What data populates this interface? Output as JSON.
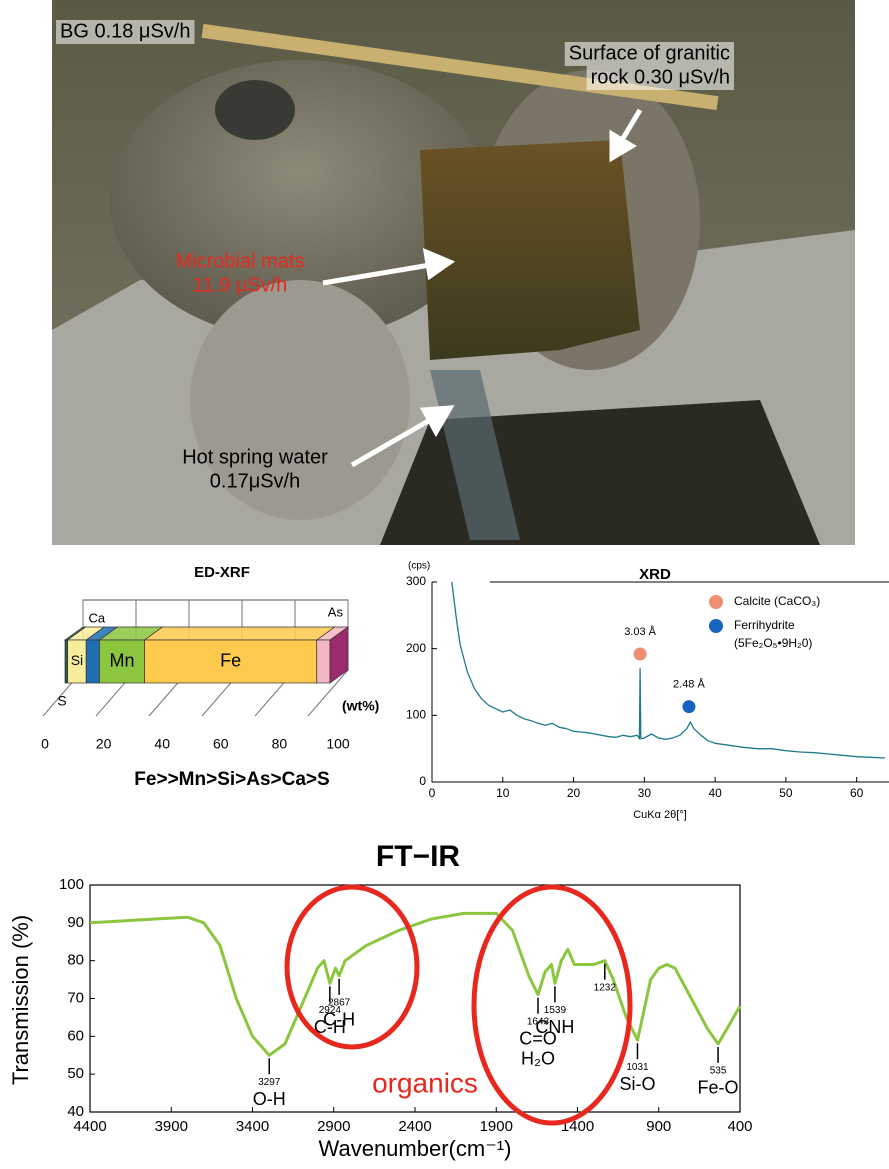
{
  "photo": {
    "labels": [
      {
        "lines": [
          "BG  0.18 μSv/h"
        ],
        "color": "#000000"
      },
      {
        "lines": [
          "Surface of granitic",
          "rock 0.30 μSv/h"
        ],
        "color": "#000000"
      },
      {
        "lines": [
          "Microbial mats",
          "11.9 μSv/h"
        ],
        "color": "#e8281e"
      },
      {
        "lines": [
          "Hot spring water",
          "0.17μSv/h"
        ],
        "color": "#000000"
      }
    ]
  },
  "chart_data": [
    {
      "type": "stacked-bar",
      "title": "ED-XRF",
      "subtitle": "Fe>>Mn>Si>As>Ca>S",
      "x_label": "(wt%)",
      "xlim": [
        0,
        100
      ],
      "xticks": [
        0,
        20,
        40,
        60,
        80,
        100
      ],
      "series": [
        {
          "name": "S",
          "color": "#2f5d46",
          "values": [
            1
          ]
        },
        {
          "name": "Si",
          "color": "#f8ec9a",
          "values": [
            7
          ]
        },
        {
          "name": "Ca",
          "color": "#1f6fb2",
          "values": [
            5
          ]
        },
        {
          "name": "Mn",
          "color": "#8cc63f",
          "values": [
            17
          ]
        },
        {
          "name": "Fe",
          "color": "#ffc94d",
          "values": [
            65
          ]
        },
        {
          "name": "As",
          "color": "#f4b6c2",
          "values": [
            5
          ]
        }
      ]
    },
    {
      "type": "line",
      "title": "XRD",
      "y_label": "(cps)",
      "x_label": "CuKα  2θ[°]",
      "xlim": [
        0,
        64
      ],
      "ylim": [
        0,
        300
      ],
      "xticks": [
        0,
        10,
        20,
        30,
        40,
        50,
        60
      ],
      "yticks": [
        0,
        100,
        200,
        300
      ],
      "series": [
        {
          "color": "#1f7a8c",
          "x": [
            2.8,
            3.5,
            4,
            5,
            6,
            7,
            8,
            9,
            10,
            11,
            12,
            13,
            14,
            15,
            16,
            17,
            18,
            19,
            20,
            21,
            22,
            23,
            24,
            25,
            26,
            27,
            28,
            29,
            29.3,
            29.4,
            29.5,
            30,
            31,
            32,
            33,
            34,
            35,
            36,
            36.5,
            37,
            38,
            39,
            40,
            42,
            44,
            46,
            48,
            50,
            52,
            54,
            56,
            58,
            60,
            62,
            64
          ],
          "values": [
            300,
            240,
            205,
            165,
            140,
            125,
            115,
            110,
            105,
            108,
            100,
            95,
            92,
            88,
            85,
            88,
            82,
            80,
            76,
            75,
            74,
            72,
            70,
            68,
            67,
            70,
            68,
            70,
            65,
            170,
            65,
            66,
            72,
            66,
            64,
            66,
            70,
            80,
            90,
            80,
            70,
            62,
            58,
            55,
            52,
            50,
            50,
            47,
            45,
            44,
            42,
            40,
            38,
            37,
            36
          ]
        }
      ],
      "legend": [
        {
          "name": "Calcite (CaCO₃)",
          "color": "#f08e74"
        },
        {
          "name": "Ferrihydrite\n(5Fe₂O₅•9H₂0)",
          "color": "#1565c0"
        }
      ],
      "peaks": [
        {
          "x": 29.4,
          "y": 192,
          "label": "3.03 Å",
          "legend": 0
        },
        {
          "x": 36.3,
          "y": 113,
          "label": "2.48 Å",
          "legend": 1
        }
      ]
    },
    {
      "type": "line",
      "title": "FT−IR",
      "y_label": "Transmission (%)",
      "x_label": "Wavenumber(cm⁻¹)",
      "xlim": [
        4400,
        400
      ],
      "ylim": [
        40,
        100
      ],
      "xticks": [
        4400,
        3900,
        3400,
        2900,
        2400,
        1900,
        1400,
        900,
        400
      ],
      "yticks": [
        40,
        50,
        60,
        70,
        80,
        90,
        100
      ],
      "series": [
        {
          "color": "#8cc63f",
          "x": [
            4400,
            4000,
            3800,
            3700,
            3600,
            3500,
            3400,
            3297,
            3200,
            3100,
            3000,
            2960,
            2924,
            2890,
            2867,
            2830,
            2700,
            2500,
            2300,
            2100,
            1900,
            1800,
            1750,
            1700,
            1643,
            1600,
            1560,
            1539,
            1500,
            1460,
            1420,
            1350,
            1300,
            1232,
            1180,
            1100,
            1031,
            1000,
            950,
            900,
            850,
            800,
            700,
            600,
            535,
            480,
            400
          ],
          "values": [
            90,
            91,
            91.5,
            90,
            84,
            70,
            60,
            55,
            58,
            68,
            78,
            80,
            74,
            78,
            76,
            80,
            84,
            88,
            91,
            92.5,
            92.5,
            88,
            82,
            76,
            71,
            77,
            79,
            74,
            80,
            83,
            79,
            79,
            79,
            80,
            75,
            65,
            59,
            65,
            75,
            78,
            79,
            78,
            70,
            62,
            58,
            62,
            68
          ]
        }
      ],
      "annotations": [
        {
          "x": 3297,
          "labels": [
            "O-H"
          ]
        },
        {
          "x": 2924,
          "labels": [
            "C-H"
          ]
        },
        {
          "x": 2867,
          "labels": [
            "C-H"
          ]
        },
        {
          "x": 1643,
          "labels": [
            "C=O",
            "H₂O"
          ]
        },
        {
          "x": 1539,
          "labels": [
            "CNH"
          ]
        },
        {
          "x": 1232,
          "labels": []
        },
        {
          "x": 1031,
          "labels": [
            "Si-O"
          ]
        },
        {
          "x": 535,
          "labels": [
            "Fe-O"
          ]
        }
      ],
      "note": "organics",
      "note_color": "#e8281e"
    }
  ]
}
